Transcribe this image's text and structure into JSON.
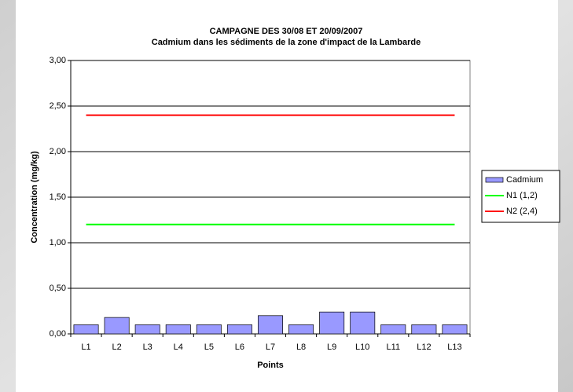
{
  "chart_data": {
    "type": "bar",
    "title": "CAMPAGNE DES 30/08 ET 20/09/2007",
    "subtitle": "Cadmium dans les sédiments de la zone d'impact de la Lambarde",
    "x_label": "Points",
    "y_label": "Concentration (mg/kg)",
    "categories": [
      "L1",
      "L2",
      "L3",
      "L4",
      "L5",
      "L6",
      "L7",
      "L8",
      "L9",
      "L10",
      "L11",
      "L12",
      "L13"
    ],
    "series": [
      {
        "name": "Cadmium",
        "type": "bar",
        "color": "#9999ff",
        "values": [
          0.1,
          0.18,
          0.1,
          0.1,
          0.1,
          0.1,
          0.2,
          0.1,
          0.24,
          0.24,
          0.1,
          0.1,
          0.1
        ]
      },
      {
        "name": "N1 (1,2)",
        "type": "line",
        "color": "#00ff00",
        "values": [
          1.2,
          1.2,
          1.2,
          1.2,
          1.2,
          1.2,
          1.2,
          1.2,
          1.2,
          1.2,
          1.2,
          1.2,
          1.2
        ]
      },
      {
        "name": "N2 (2,4)",
        "type": "line",
        "color": "#ff0000",
        "values": [
          2.4,
          2.4,
          2.4,
          2.4,
          2.4,
          2.4,
          2.4,
          2.4,
          2.4,
          2.4,
          2.4,
          2.4,
          2.4
        ]
      }
    ],
    "ylim": [
      0,
      3
    ],
    "yticks": [
      {
        "value": 0,
        "label": "0,00"
      },
      {
        "value": 0.5,
        "label": "0,50"
      },
      {
        "value": 1,
        "label": "1,00"
      },
      {
        "value": 1.5,
        "label": "1,50"
      },
      {
        "value": 2,
        "label": "2,00"
      },
      {
        "value": 2.5,
        "label": "2,50"
      },
      {
        "value": 3,
        "label": "3,00"
      }
    ],
    "grid": true,
    "legend": "right"
  }
}
